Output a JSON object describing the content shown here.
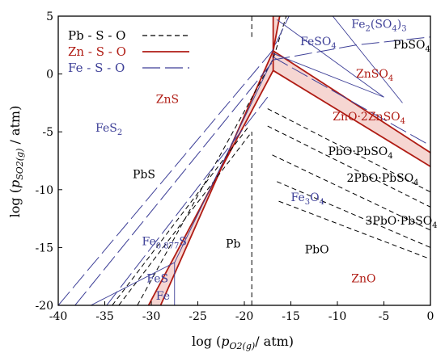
{
  "chart_data": {
    "type": "line",
    "title": "",
    "xlabel": {
      "prefix": "log (",
      "p": "p",
      "sub": "O2(g)",
      "suffix": "/ atm)"
    },
    "ylabel": {
      "prefix": "log (",
      "p": "p",
      "sub": "SO2(g)",
      "suffix": " / atm)"
    },
    "xlim": [
      -40,
      0
    ],
    "ylim": [
      -20,
      5
    ],
    "x_ticks": [
      -40,
      -35,
      -30,
      -25,
      -20,
      -15,
      -10,
      -5,
      0
    ],
    "y_ticks": [
      5,
      0,
      -5,
      -10,
      -15,
      -20
    ],
    "grid": false,
    "legend": {
      "placement": "top-left",
      "entries": [
        {
          "label": "Pb - S - O",
          "color": "#000000",
          "style": "short-dash"
        },
        {
          "label": "Zn - S - O",
          "color": "#b01c14",
          "style": "solid-double"
        },
        {
          "label": "Fe - S - O",
          "color": "#3d3f97",
          "style": "long-dash"
        }
      ]
    },
    "colors": {
      "Pb": "#000000",
      "Zn": "#b01c14",
      "Zn_fill": "#f6d6d2",
      "Fe": "#3d3f97",
      "Fe_thin": "#8a8dc8"
    },
    "series": [
      {
        "system": "Zn",
        "style": "solid",
        "points": [
          [
            -30.3,
            -20
          ],
          [
            -16.9,
            0.3
          ],
          [
            0,
            -8.0
          ]
        ]
      },
      {
        "system": "Zn",
        "style": "solid",
        "points": [
          [
            -16.9,
            0.3
          ],
          [
            -16.9,
            5
          ]
        ]
      },
      {
        "system": "Zn",
        "style": "solid",
        "points": [
          [
            -29.0,
            -20
          ],
          [
            -16.9,
            2.0
          ],
          [
            0,
            -6.8
          ]
        ]
      },
      {
        "system": "Zn",
        "style": "solid",
        "points": [
          [
            -16.9,
            2.0
          ],
          [
            -16.2,
            5
          ]
        ]
      },
      {
        "system": "Pb",
        "style": "short-dash",
        "points": [
          [
            -31.5,
            -20
          ],
          [
            -16.9,
            1.3
          ],
          [
            -15.5,
            5
          ]
        ]
      },
      {
        "system": "Pb",
        "style": "short-dash",
        "points": [
          [
            -19.2,
            -20
          ],
          [
            -19.2,
            -5
          ]
        ]
      },
      {
        "system": "Pb",
        "style": "short-dash",
        "points": [
          [
            -19.2,
            5
          ],
          [
            -19.2,
            3.2
          ]
        ]
      },
      {
        "system": "Pb",
        "style": "short-dash",
        "points": [
          [
            -17.5,
            -3.0
          ],
          [
            0,
            -10.2
          ]
        ]
      },
      {
        "system": "Pb",
        "style": "short-dash",
        "points": [
          [
            -17.5,
            -4.5
          ],
          [
            0,
            -11.5
          ]
        ]
      },
      {
        "system": "Pb",
        "style": "short-dash",
        "points": [
          [
            -17.0,
            -7.0
          ],
          [
            0,
            -13.5
          ]
        ]
      },
      {
        "system": "Pb",
        "style": "short-dash",
        "points": [
          [
            -16.5,
            -9.3
          ],
          [
            0,
            -15.0
          ]
        ]
      },
      {
        "system": "Pb",
        "style": "short-dash",
        "points": [
          [
            -16.3,
            -11.0
          ],
          [
            0,
            -16.0
          ]
        ]
      },
      {
        "system": "Pb",
        "style": "short-dash",
        "points": [
          [
            -34.2,
            -20
          ],
          [
            -19.5,
            -4.5
          ]
        ]
      },
      {
        "system": "Pb",
        "style": "short-dash",
        "points": [
          [
            -33.5,
            -20
          ],
          [
            -19.2,
            -5.0
          ]
        ]
      },
      {
        "system": "Fe",
        "style": "long-dash",
        "points": [
          [
            -40,
            -20
          ],
          [
            -17.0,
            2.0
          ],
          [
            -15.2,
            5
          ]
        ]
      },
      {
        "system": "Fe",
        "style": "long-dash",
        "points": [
          [
            -38.2,
            -20
          ],
          [
            -17.0,
            1.0
          ]
        ]
      },
      {
        "system": "Fe",
        "style": "long-dash",
        "points": [
          [
            -17.0,
            1.5
          ],
          [
            0,
            -6.2
          ]
        ]
      },
      {
        "system": "Fe",
        "style": "long-dash",
        "points": [
          [
            -34.8,
            -20
          ],
          [
            -17.5,
            -2.0
          ]
        ]
      },
      {
        "system": "Fe",
        "style": "solid-thin",
        "points": [
          [
            -27.5,
            -20
          ],
          [
            -27.5,
            -16.3
          ]
        ]
      },
      {
        "system": "Fe",
        "style": "solid-thin",
        "points": [
          [
            -36.5,
            -20
          ],
          [
            -27.5,
            -16.3
          ],
          [
            -17.0,
            1.2
          ]
        ]
      },
      {
        "system": "Fe",
        "style": "solid-thin",
        "points": [
          [
            -17.0,
            1.8
          ],
          [
            -5.0,
            -2.0
          ]
        ]
      },
      {
        "system": "Fe",
        "style": "solid-thin",
        "points": [
          [
            -16.5,
            4.7
          ],
          [
            -5.0,
            -2.0
          ]
        ]
      },
      {
        "system": "Fe",
        "style": "solid-thin",
        "points": [
          [
            -10.5,
            5
          ],
          [
            -3.0,
            -2.5
          ]
        ]
      },
      {
        "system": "Fe",
        "style": "long-dash",
        "points": [
          [
            -17.0,
            1.2
          ],
          [
            -8.0,
            2.5
          ],
          [
            0,
            3.2
          ]
        ]
      }
    ],
    "regions": [
      {
        "label": "ZnS",
        "system": "Zn",
        "x": -29.5,
        "y": -2.5,
        "html": "ZnS"
      },
      {
        "label": "FeS2",
        "system": "Fe",
        "x": -36.0,
        "y": -5.0,
        "html": "FeS<tspan font-size='10' dy='4'>2</tspan>"
      },
      {
        "label": "PbS",
        "system": "Pb",
        "x": -32.0,
        "y": -9.0,
        "html": "PbS"
      },
      {
        "label": "FeSO4",
        "system": "Fe",
        "x": -14.0,
        "y": 2.5,
        "html": "FeSO<tspan font-size='10' dy='4'>4</tspan>"
      },
      {
        "label": "Fe2(SO4)3",
        "system": "Fe",
        "x": -8.5,
        "y": 4.0,
        "html": "Fe<tspan font-size='10' dy='4'>2</tspan><tspan dy='-4'>(SO</tspan><tspan font-size='10' dy='4'>4</tspan><tspan dy='-4'>)</tspan><tspan font-size='10' dy='4'>3</tspan>"
      },
      {
        "label": "PbSO4",
        "system": "Pb",
        "x": -4.0,
        "y": 2.2,
        "html": "PbSO<tspan font-size='10' dy='4'>4</tspan>"
      },
      {
        "label": "ZnSO4",
        "system": "Zn",
        "x": -8.0,
        "y": -0.3,
        "html": "ZnSO<tspan font-size='10' dy='4'>4</tspan>"
      },
      {
        "label": "ZnO·2ZnSO4",
        "system": "Zn",
        "x": -10.5,
        "y": -4.0,
        "html": "ZnO·2ZnSO<tspan font-size='10' dy='4'>4</tspan>"
      },
      {
        "label": "PbO·PbSO4",
        "system": "Pb",
        "x": -11.0,
        "y": -7.0,
        "html": "PbO·PbSO<tspan font-size='10' dy='4'>4</tspan>"
      },
      {
        "label": "2PbO·PbSO4",
        "system": "Pb",
        "x": -9.0,
        "y": -9.3,
        "html": "2PbO·PbSO<tspan font-size='10' dy='4'>4</tspan>"
      },
      {
        "label": "Fe3O4",
        "system": "Fe",
        "x": -15.0,
        "y": -11.0,
        "html": "Fe<tspan font-size='10' dy='4'>3</tspan><tspan dy='-4'>O</tspan><tspan font-size='10' dy='4'>4</tspan>"
      },
      {
        "label": "3PbO·PbSO4",
        "system": "Pb",
        "x": -7.0,
        "y": -13.0,
        "html": "3PbO·PbSO<tspan font-size='10' dy='4'>4</tspan>"
      },
      {
        "label": "Fe0.877S",
        "system": "Fe",
        "x": -31.0,
        "y": -14.8,
        "html": "Fe<tspan font-size='10' dy='4'>0.877</tspan><tspan dy='-4'>S</tspan>"
      },
      {
        "label": "Pb",
        "system": "Pb",
        "x": -22.0,
        "y": -15.0,
        "html": "Pb"
      },
      {
        "label": "PbO",
        "system": "Pb",
        "x": -13.5,
        "y": -15.5,
        "html": "PbO"
      },
      {
        "label": "FeS",
        "system": "Fe",
        "x": -30.5,
        "y": -18.0,
        "html": "FeS"
      },
      {
        "label": "Fe",
        "system": "Fe",
        "x": -29.5,
        "y": -19.5,
        "html": "Fe"
      },
      {
        "label": "ZnO",
        "system": "Zn",
        "x": -8.5,
        "y": -18.0,
        "html": "ZnO"
      }
    ]
  }
}
